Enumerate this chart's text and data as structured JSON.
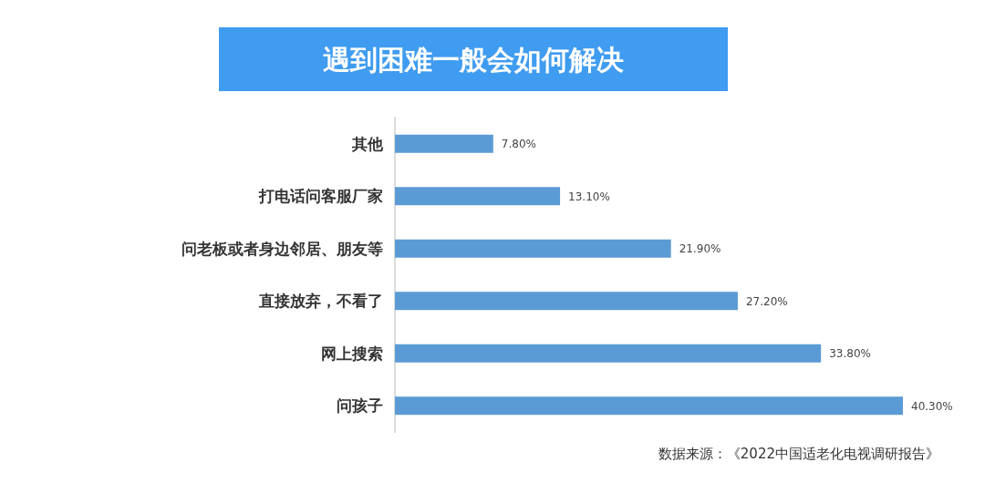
{
  "chart_data": {
    "type": "bar",
    "orientation": "horizontal",
    "title": "遇到困难一般会如何解决",
    "categories": [
      "其他",
      "打电话问客服厂家",
      "问老板或者身边邻居、朋友等",
      "直接放弃，不看了",
      "网上搜索",
      "问孩子"
    ],
    "values": [
      7.8,
      13.1,
      21.9,
      27.2,
      33.8,
      40.3
    ],
    "value_labels": [
      "7.80%",
      "13.10%",
      "21.90%",
      "27.20%",
      "33.80%",
      "40.30%"
    ],
    "color": "#5b9bd5",
    "annotations": [
      "数据来源：《2022中国适老化电视调研报告》"
    ]
  }
}
